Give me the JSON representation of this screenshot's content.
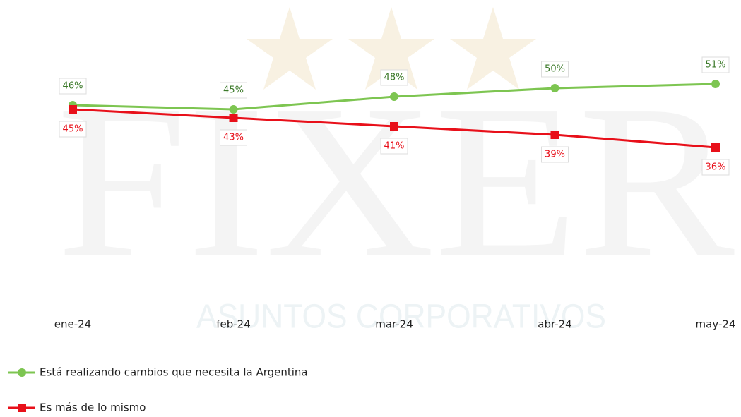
{
  "chart_data": {
    "type": "line",
    "watermark": {
      "brand": "FIXER",
      "tagline": "ASUNTOS CORPORATIVOS"
    },
    "categories": [
      "ene-24",
      "feb-24",
      "mar-24",
      "abr-24",
      "may-24"
    ],
    "series": [
      {
        "name": "Está realizando cambios que necesita la Argentina",
        "color": "#7dc551",
        "marker": "circle",
        "values": [
          46,
          45,
          48,
          50,
          51
        ],
        "value_labels": [
          "46%",
          "45%",
          "48%",
          "50%",
          "51%"
        ]
      },
      {
        "name": "Es más de lo mismo",
        "color": "#e8101a",
        "marker": "square",
        "values": [
          45,
          43,
          41,
          39,
          36
        ],
        "value_labels": [
          "45%",
          "43%",
          "41%",
          "39%",
          "36%"
        ]
      }
    ]
  }
}
